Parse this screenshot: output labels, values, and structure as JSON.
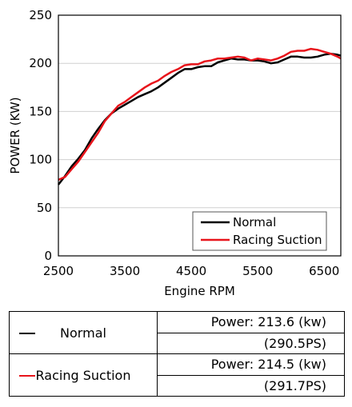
{
  "chart_data": {
    "type": "line",
    "xlabel": "Engine RPM",
    "ylabel": "POWER (KW)",
    "xlim": [
      2500,
      6750
    ],
    "ylim": [
      0,
      250
    ],
    "xticks": [
      2500,
      3500,
      4500,
      5500,
      6500
    ],
    "yticks": [
      0,
      50,
      100,
      150,
      200,
      250
    ],
    "grid": "horizontal",
    "legend_position": "bottom-right",
    "series": [
      {
        "name": "Normal",
        "color": "#000000",
        "x": [
          2500,
          2600,
          2700,
          2800,
          2900,
          3000,
          3100,
          3200,
          3300,
          3400,
          3500,
          3600,
          3700,
          3800,
          3900,
          4000,
          4100,
          4200,
          4300,
          4400,
          4500,
          4600,
          4700,
          4800,
          4900,
          5000,
          5100,
          5200,
          5300,
          5400,
          5500,
          5600,
          5700,
          5800,
          5900,
          6000,
          6100,
          6200,
          6300,
          6400,
          6500,
          6600,
          6700,
          6750
        ],
        "values": [
          74,
          83,
          93,
          101,
          110,
          122,
          132,
          141,
          148,
          153,
          157,
          161,
          165,
          168,
          171,
          175,
          180,
          185,
          190,
          194,
          194,
          196,
          197,
          197,
          201,
          203,
          205,
          204,
          204,
          203,
          203,
          202,
          200,
          201,
          204,
          207,
          207,
          206,
          206,
          207,
          209,
          210,
          209,
          208
        ]
      },
      {
        "name": "Racing Suction",
        "color": "#e8141b",
        "x": [
          2500,
          2600,
          2700,
          2800,
          2900,
          3000,
          3100,
          3200,
          3300,
          3400,
          3500,
          3600,
          3700,
          3800,
          3900,
          4000,
          4100,
          4200,
          4300,
          4400,
          4500,
          4600,
          4700,
          4800,
          4900,
          5000,
          5100,
          5200,
          5300,
          5400,
          5500,
          5600,
          5700,
          5800,
          5900,
          6000,
          6100,
          6200,
          6300,
          6400,
          6500,
          6600,
          6700,
          6750
        ],
        "values": [
          79,
          82,
          90,
          98,
          108,
          118,
          128,
          140,
          148,
          156,
          160,
          165,
          170,
          175,
          179,
          182,
          187,
          191,
          194,
          198,
          199,
          199,
          202,
          203,
          205,
          205,
          206,
          207,
          206,
          203,
          205,
          204,
          203,
          205,
          208,
          212,
          213,
          213,
          215,
          214,
          212,
          210,
          207,
          205
        ]
      }
    ]
  },
  "table": {
    "rows": [
      {
        "name": "Normal",
        "color": "#000000",
        "power": "Power: 213.6 (kw)",
        "ps": "(290.5PS)"
      },
      {
        "name": "Racing Suction",
        "color": "#e8141b",
        "power": "Power: 214.5 (kw)",
        "ps": "(291.7PS)"
      }
    ]
  }
}
